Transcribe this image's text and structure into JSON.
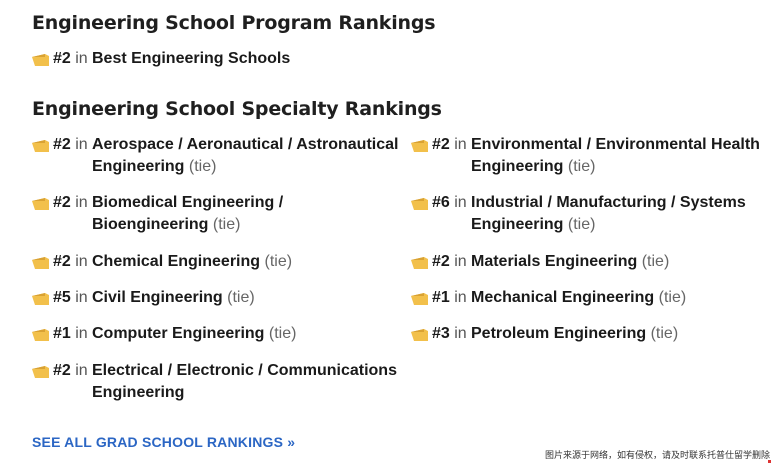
{
  "program_section": {
    "heading": "Engineering School Program Rankings",
    "items": [
      {
        "rank": "#2",
        "in": "in",
        "title": "Best Engineering Schools",
        "tie": ""
      }
    ]
  },
  "specialty_section": {
    "heading": "Engineering School Specialty Rankings",
    "left": [
      {
        "rank": "#2",
        "in": "in",
        "title": "Aerospace / Aeronautical / Astronautical Engineering",
        "tie": "(tie)"
      },
      {
        "rank": "#2",
        "in": "in",
        "title": "Biomedical Engineering / Bioengineering",
        "tie": "(tie)"
      },
      {
        "rank": "#2",
        "in": "in",
        "title": "Chemical Engineering",
        "tie": "(tie)"
      },
      {
        "rank": "#5",
        "in": "in",
        "title": "Civil Engineering",
        "tie": "(tie)"
      },
      {
        "rank": "#1",
        "in": "in",
        "title": "Computer Engineering",
        "tie": "(tie)"
      },
      {
        "rank": "#2",
        "in": "in",
        "title": "Electrical / Electronic / Communications Engineering",
        "tie": ""
      }
    ],
    "right": [
      {
        "rank": "#2",
        "in": "in",
        "title": "Environmental / Environmental Health Engineering",
        "tie": "(tie)"
      },
      {
        "rank": "#6",
        "in": "in",
        "title": "Industrial / Manufacturing / Systems Engineering",
        "tie": "(tie)"
      },
      {
        "rank": "#2",
        "in": "in",
        "title": "Materials Engineering",
        "tie": "(tie)"
      },
      {
        "rank": "#1",
        "in": "in",
        "title": "Mechanical Engineering",
        "tie": "(tie)"
      },
      {
        "rank": "#3",
        "in": "in",
        "title": "Petroleum Engineering",
        "tie": "(tie)"
      }
    ]
  },
  "see_all_link": "SEE ALL GRAD SCHOOL RANKINGS »",
  "watermark": "图片来源于网络，如有侵权，请及时联系托普仕留学删除",
  "colors": {
    "icon_gold": "#f2c04b",
    "link_blue": "#2b66c4"
  },
  "icons": {
    "rank_badge": "folded-ribbon-icon"
  }
}
